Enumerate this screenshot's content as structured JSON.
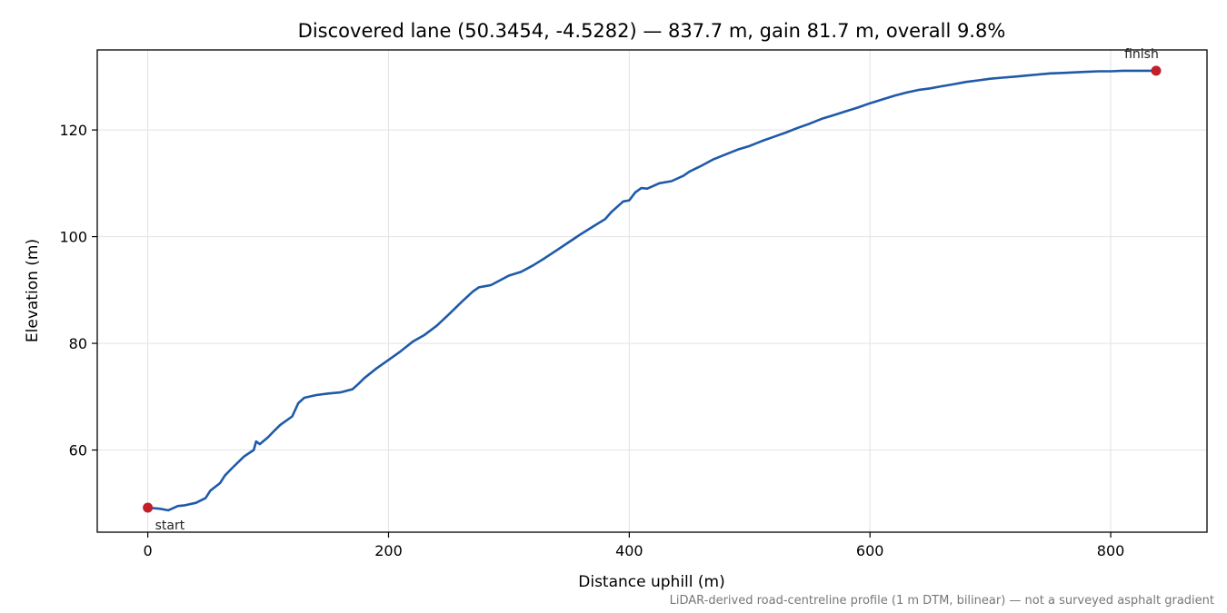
{
  "chart_data": {
    "type": "line",
    "title": "Discovered lane (50.3454, -4.5282) — 837.7 m, gain 81.7 m, overall 9.8%",
    "xlabel": "Distance uphill (m)",
    "ylabel": "Elevation (m)",
    "xlim": [
      -42,
      880
    ],
    "ylim": [
      44.6,
      135.0
    ],
    "x_ticks": [
      0,
      200,
      400,
      600,
      800
    ],
    "y_ticks": [
      60,
      80,
      100,
      120
    ],
    "grid": true,
    "line_color": "#1f5aa8",
    "marker_color": "#c0202a",
    "series": [
      {
        "x": [
          0,
          10,
          17,
          25,
          30,
          40,
          48,
          52,
          60,
          64,
          70,
          80,
          88,
          90,
          93,
          100,
          105,
          110,
          120,
          125,
          130,
          140,
          150,
          160,
          170,
          175,
          180,
          190,
          200,
          210,
          220,
          230,
          240,
          250,
          260,
          270,
          275,
          280,
          285,
          290,
          300,
          310,
          320,
          330,
          340,
          350,
          360,
          370,
          380,
          385,
          390,
          395,
          400,
          405,
          410,
          415,
          425,
          435,
          445,
          450,
          460,
          470,
          480,
          490,
          500,
          510,
          520,
          530,
          540,
          550,
          560,
          570,
          580,
          590,
          600,
          610,
          620,
          630,
          640,
          650,
          660,
          670,
          680,
          690,
          700,
          710,
          720,
          730,
          740,
          750,
          760,
          770,
          780,
          790,
          800,
          810,
          820,
          830,
          837.7
        ],
        "y": [
          49.2,
          49.0,
          48.7,
          49.5,
          49.6,
          50.1,
          51.0,
          52.4,
          53.8,
          55.2,
          56.6,
          58.8,
          60.0,
          61.6,
          61.1,
          62.4,
          63.6,
          64.7,
          66.3,
          68.8,
          69.8,
          70.3,
          70.6,
          70.8,
          71.4,
          72.4,
          73.5,
          75.3,
          76.9,
          78.5,
          80.3,
          81.6,
          83.3,
          85.4,
          87.6,
          89.7,
          90.5,
          90.7,
          90.9,
          91.5,
          92.7,
          93.4,
          94.6,
          96.0,
          97.5,
          99.0,
          100.5,
          101.9,
          103.3,
          104.6,
          105.6,
          106.6,
          106.8,
          108.3,
          109.1,
          109.0,
          110.0,
          110.4,
          111.4,
          112.2,
          113.3,
          114.5,
          115.4,
          116.3,
          117.0,
          117.9,
          118.7,
          119.5,
          120.4,
          121.2,
          122.1,
          122.8,
          123.5,
          124.2,
          125.0,
          125.7,
          126.4,
          127.0,
          127.5,
          127.8,
          128.2,
          128.6,
          129.0,
          129.3,
          129.6,
          129.8,
          130.0,
          130.2,
          130.4,
          130.6,
          130.7,
          130.8,
          130.9,
          131.0,
          131.0,
          131.1,
          131.1,
          131.1,
          131.1
        ]
      }
    ],
    "annotations": [
      {
        "text": "start",
        "x": 0,
        "y": 49.2
      },
      {
        "text": "finish",
        "x": 837.7,
        "y": 131.1
      }
    ],
    "footnote": "LiDAR-derived road-centreline profile (1 m DTM, bilinear) — not a surveyed asphalt gradient"
  }
}
